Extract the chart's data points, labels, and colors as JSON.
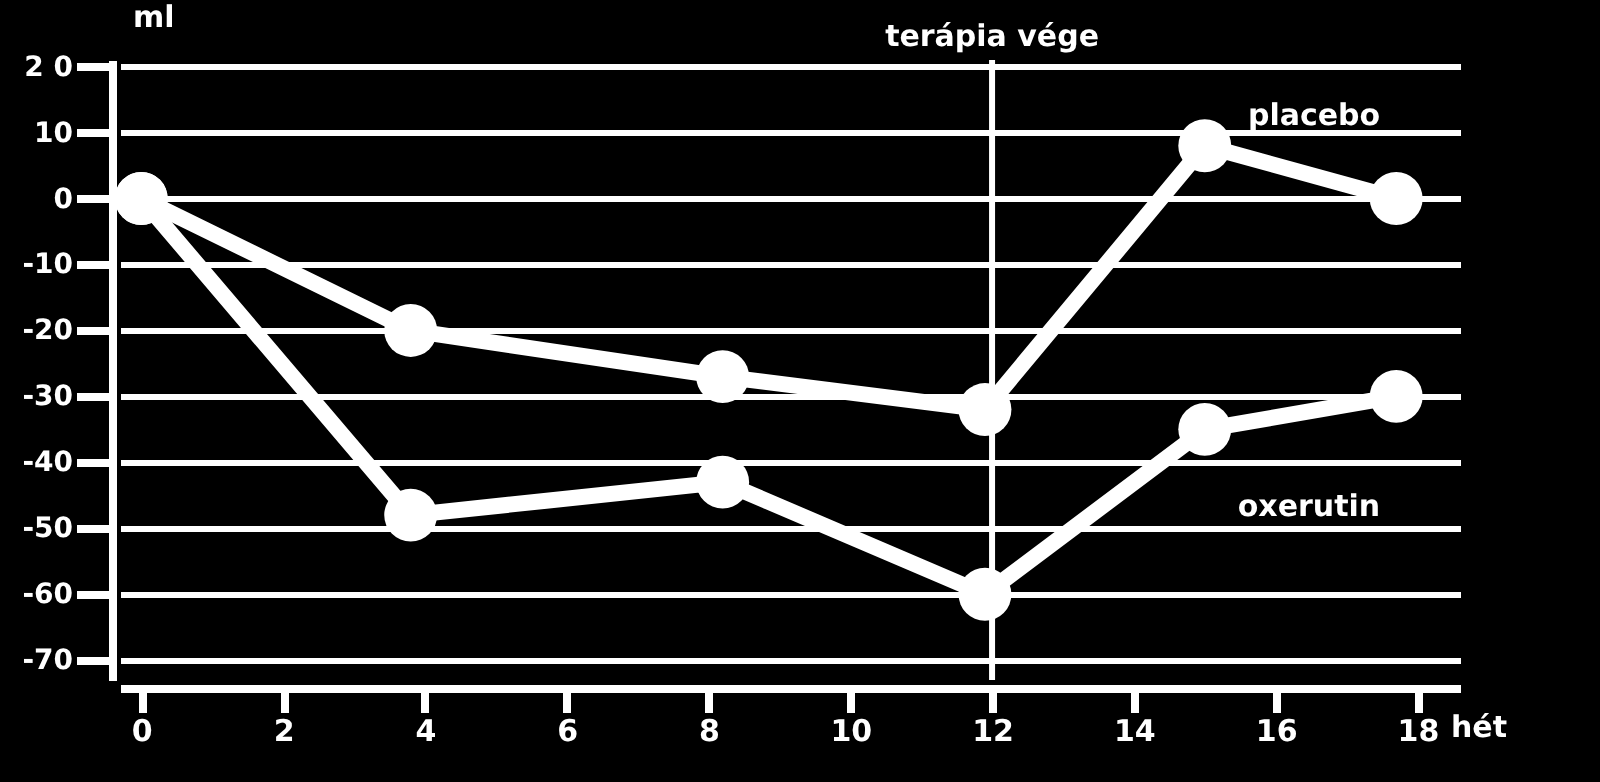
{
  "chart_data": {
    "type": "line",
    "ylabel": "ml",
    "xlabel": "hét",
    "xlim": [
      -0.3,
      18.6
    ],
    "xticks": [
      0,
      2,
      4,
      6,
      8,
      10,
      12,
      14,
      16,
      18
    ],
    "ylim": [
      -73,
      21
    ],
    "yticks": [
      {
        "value": 20,
        "label": "2 0"
      },
      10,
      0,
      -10,
      -20,
      -30,
      -40,
      -50,
      -60,
      -70
    ],
    "grid": "y",
    "marker": "circle",
    "line_style": "solid",
    "series": [
      {
        "name": "placebo",
        "color": "#ffffff",
        "x": [
          0,
          3.8,
          8.2,
          11.9,
          15,
          17.7
        ],
        "values": [
          0,
          -20,
          -27,
          -32,
          8,
          0
        ]
      },
      {
        "name": "oxerutin",
        "color": "#ffffff",
        "x": [
          0,
          3.8,
          8.2,
          11.9,
          15,
          17.7
        ],
        "values": [
          0,
          -48,
          -43,
          -60,
          -35,
          -30
        ]
      }
    ],
    "ref_lines": [
      {
        "axis": "x",
        "value": 12,
        "label": "terápia vége"
      }
    ]
  }
}
